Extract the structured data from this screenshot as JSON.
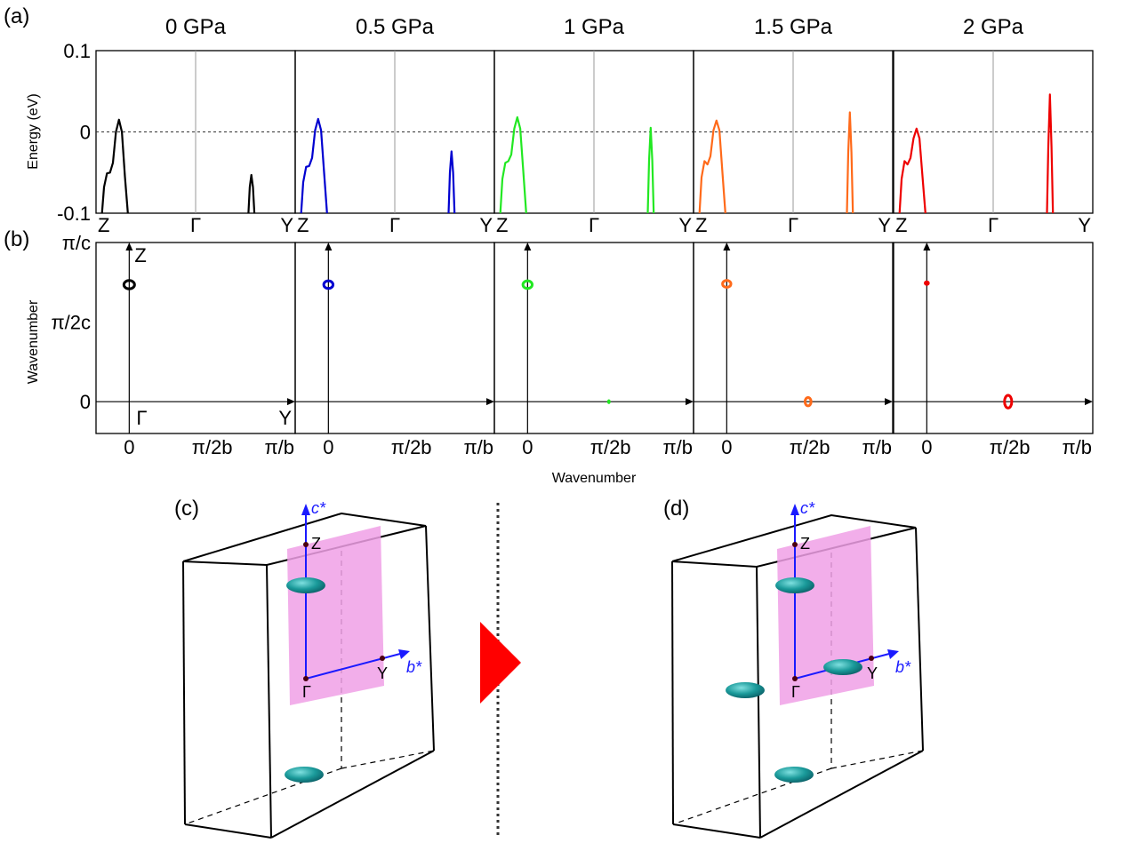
{
  "panel_labels": {
    "a": "(a)",
    "b": "(b)",
    "c": "(c)",
    "d": "(d)"
  },
  "chart_data": [
    {
      "type": "line",
      "panel": "(a)",
      "ylabel": "Energy (eV)",
      "ylim": [
        -0.1,
        0.1
      ],
      "yticks": [
        "0.1",
        "0",
        "-0.1"
      ],
      "ytick_values": [
        0.1,
        0,
        -0.1
      ],
      "xticks": [
        "Z",
        "Γ",
        "Y"
      ],
      "xtick_values": [
        0,
        0.5,
        1
      ],
      "xlim": [
        0,
        1
      ],
      "reference_line": 0,
      "series": [
        {
          "name": "0 GPa",
          "color": "#000000",
          "bands": [
            {
              "x": [
                0.03,
                0.04,
                0.055,
                0.07,
                0.085,
                0.1,
                0.115,
                0.13,
                0.145,
                0.16
              ],
              "y": [
                -0.1,
                -0.068,
                -0.051,
                -0.05,
                -0.038,
                0.0,
                0.015,
                0.0,
                -0.055,
                -0.1
              ]
            },
            {
              "x": [
                0.765,
                0.772,
                0.78,
                0.788,
                0.795
              ],
              "y": [
                -0.1,
                -0.068,
                -0.053,
                -0.068,
                -0.1
              ]
            }
          ]
        },
        {
          "name": "0.5 GPa",
          "color": "#0000d0",
          "bands": [
            {
              "x": [
                0.03,
                0.04,
                0.055,
                0.07,
                0.085,
                0.1,
                0.115,
                0.13,
                0.145,
                0.16
              ],
              "y": [
                -0.1,
                -0.062,
                -0.043,
                -0.042,
                -0.032,
                0.002,
                0.016,
                0.002,
                -0.05,
                -0.1
              ]
            },
            {
              "x": [
                0.77,
                0.777,
                0.785,
                0.793,
                0.8
              ],
              "y": [
                -0.1,
                -0.05,
                -0.024,
                -0.05,
                -0.1
              ]
            }
          ]
        },
        {
          "name": "1 GPa",
          "color": "#22e822",
          "bands": [
            {
              "x": [
                0.03,
                0.04,
                0.055,
                0.07,
                0.085,
                0.1,
                0.115,
                0.13,
                0.145,
                0.16
              ],
              "y": [
                -0.1,
                -0.058,
                -0.038,
                -0.036,
                -0.028,
                0.004,
                0.018,
                0.004,
                -0.048,
                -0.1
              ]
            },
            {
              "x": [
                0.77,
                0.777,
                0.785,
                0.793,
                0.8
              ],
              "y": [
                -0.1,
                -0.035,
                0.005,
                -0.035,
                -0.1
              ]
            }
          ]
        },
        {
          "name": "1.5 GPa",
          "color": "#ff6a1a",
          "bands": [
            {
              "x": [
                0.03,
                0.04,
                0.055,
                0.07,
                0.085,
                0.1,
                0.115,
                0.13,
                0.145,
                0.16
              ],
              "y": [
                -0.1,
                -0.056,
                -0.036,
                -0.04,
                -0.03,
                0.002,
                0.014,
                0.002,
                -0.05,
                -0.1
              ]
            },
            {
              "x": [
                0.77,
                0.777,
                0.785,
                0.793,
                0.8
              ],
              "y": [
                -0.1,
                -0.025,
                0.024,
                -0.025,
                -0.1
              ]
            }
          ]
        },
        {
          "name": "2 GPa",
          "color": "#ee0000",
          "bands": [
            {
              "x": [
                0.03,
                0.04,
                0.055,
                0.07,
                0.085,
                0.1,
                0.115,
                0.13,
                0.145,
                0.16
              ],
              "y": [
                -0.1,
                -0.058,
                -0.036,
                -0.04,
                -0.032,
                -0.008,
                0.004,
                -0.008,
                -0.055,
                -0.1
              ]
            },
            {
              "x": [
                0.77,
                0.777,
                0.785,
                0.793,
                0.8
              ],
              "y": [
                -0.1,
                -0.018,
                0.046,
                -0.018,
                -0.1
              ]
            }
          ]
        }
      ]
    },
    {
      "type": "scatter",
      "panel": "(b)",
      "ylabel": "Wavenumber",
      "xlabel": "Wavenumber",
      "yticks": [
        "π/c",
        "π/2c",
        "0"
      ],
      "ytick_values": [
        1,
        0.5,
        0
      ],
      "xticks": [
        "0",
        "π/2b",
        "π/b"
      ],
      "xtick_values": [
        0,
        0.5,
        1
      ],
      "xlim": [
        -0.2,
        1
      ],
      "ylim": [
        -0.2,
        1
      ],
      "axis_labels": {
        "z": "Z",
        "gamma": "Γ",
        "y": "Y"
      },
      "series": [
        {
          "name": "0 GPa",
          "color": "#000000",
          "pockets": [
            {
              "x": 0,
              "y": 0.735,
              "rx": 0.032,
              "ry": 0.026,
              "filled": false
            }
          ]
        },
        {
          "name": "0.5 GPa",
          "color": "#0000d0",
          "pockets": [
            {
              "x": 0,
              "y": 0.735,
              "rx": 0.028,
              "ry": 0.024,
              "filled": false
            }
          ]
        },
        {
          "name": "1 GPa",
          "color": "#22e822",
          "pockets": [
            {
              "x": 0,
              "y": 0.735,
              "rx": 0.028,
              "ry": 0.024,
              "filled": false
            },
            {
              "x": 0.49,
              "y": 0,
              "rx": 0.008,
              "ry": 0.012,
              "filled": true
            }
          ]
        },
        {
          "name": "1.5 GPa",
          "color": "#ff6a1a",
          "pockets": [
            {
              "x": 0,
              "y": 0.74,
              "rx": 0.025,
              "ry": 0.022,
              "filled": false
            },
            {
              "x": 0.49,
              "y": 0,
              "rx": 0.018,
              "ry": 0.026,
              "filled": false
            }
          ]
        },
        {
          "name": "2 GPa",
          "color": "#ee0000",
          "pockets": [
            {
              "x": 0,
              "y": 0.745,
              "rx": 0.015,
              "ry": 0.014,
              "filled": true
            },
            {
              "x": 0.49,
              "y": 0,
              "rx": 0.022,
              "ry": 0.04,
              "filled": false
            }
          ]
        }
      ]
    }
  ],
  "brillouin": {
    "c": {
      "label": "(c)",
      "axis_c": "c*",
      "axis_b": "b*",
      "z": "Z",
      "gamma": "Γ",
      "y": "Y"
    },
    "d": {
      "label": "(d)",
      "axis_c": "c*",
      "axis_b": "b*",
      "z": "Z",
      "gamma": "Γ",
      "y": "Y"
    },
    "colors": {
      "box": "#000000",
      "plane": "#f0a0e6",
      "axis": "#1a1aff",
      "pocket": "#1a9a9a",
      "arrow": "#ff0000",
      "divider": "#333333"
    }
  }
}
